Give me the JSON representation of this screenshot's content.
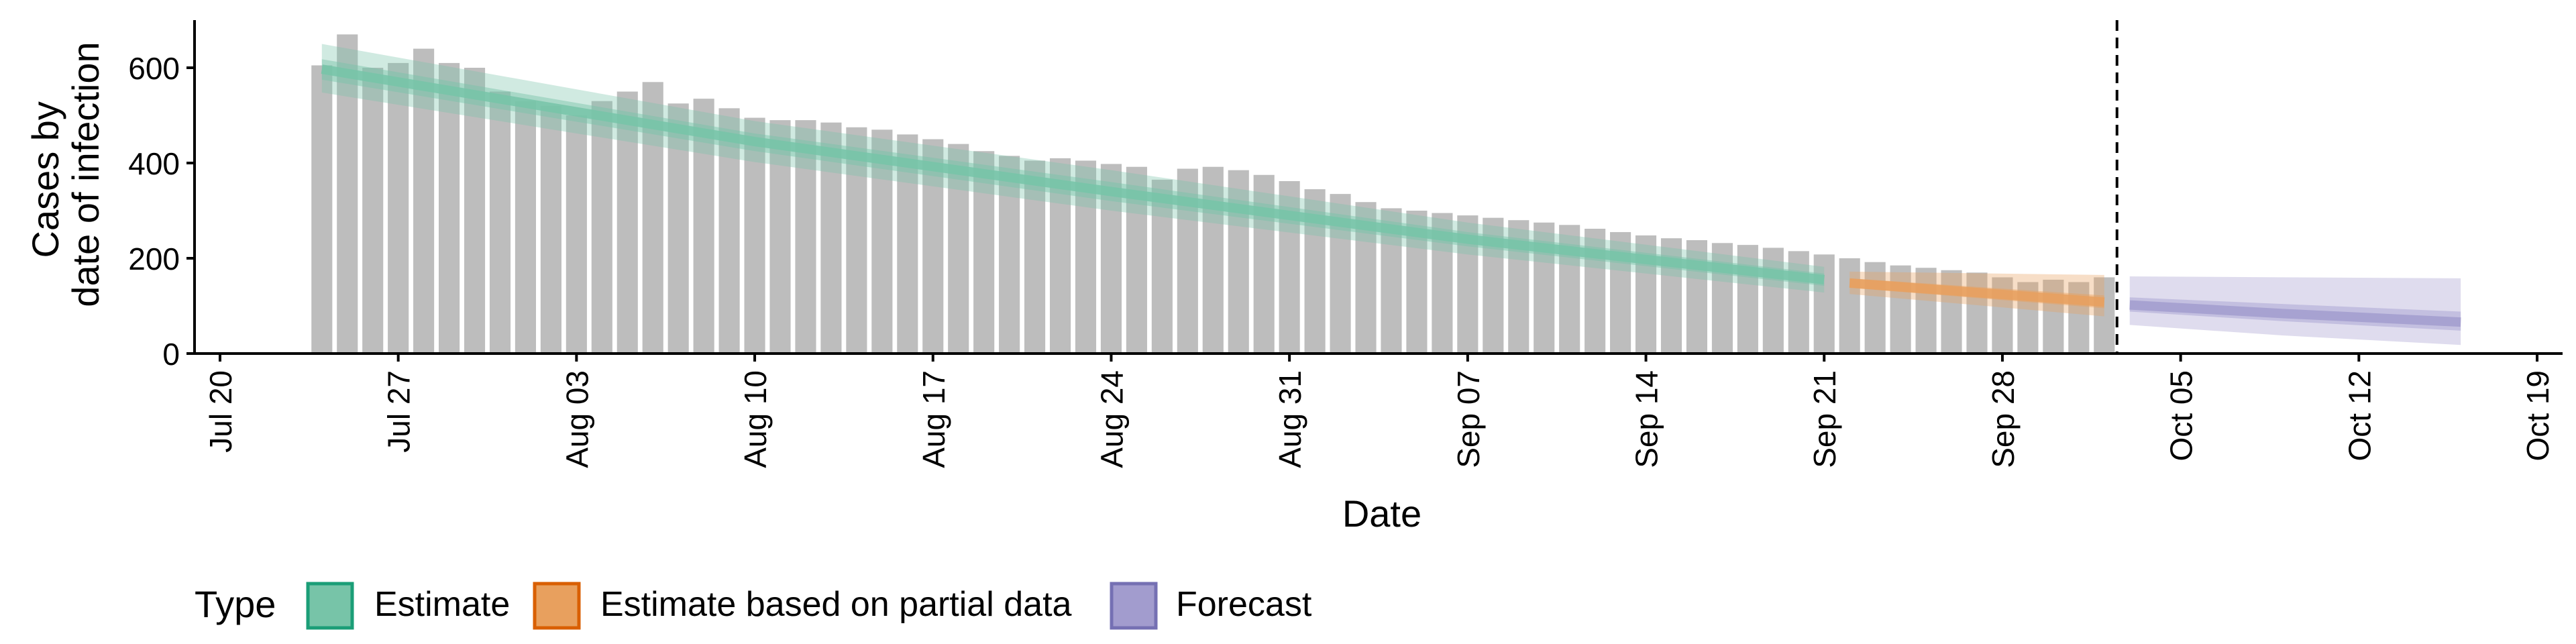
{
  "chart_data": {
    "type": "bar",
    "title": "",
    "xlabel": "Date",
    "ylabel_lines": [
      "Cases by",
      "date of infection"
    ],
    "ylim": [
      0,
      700
    ],
    "y_ticks": [
      0,
      200,
      400,
      600
    ],
    "x_range": [
      "2020-07-19",
      "2020-10-20"
    ],
    "x_ticks": [
      {
        "date": "2020-07-20",
        "label": "Jul 20"
      },
      {
        "date": "2020-07-27",
        "label": "Jul 27"
      },
      {
        "date": "2020-08-03",
        "label": "Aug 03"
      },
      {
        "date": "2020-08-10",
        "label": "Aug 10"
      },
      {
        "date": "2020-08-17",
        "label": "Aug 17"
      },
      {
        "date": "2020-08-24",
        "label": "Aug 24"
      },
      {
        "date": "2020-08-31",
        "label": "Aug 31"
      },
      {
        "date": "2020-09-07",
        "label": "Sep 07"
      },
      {
        "date": "2020-09-14",
        "label": "Sep 14"
      },
      {
        "date": "2020-09-21",
        "label": "Sep 21"
      },
      {
        "date": "2020-09-28",
        "label": "Sep 28"
      },
      {
        "date": "2020-10-05",
        "label": "Oct 05"
      },
      {
        "date": "2020-10-12",
        "label": "Oct 12"
      },
      {
        "date": "2020-10-19",
        "label": "Oct 19"
      }
    ],
    "bars": {
      "color": "#bdbdbd",
      "dates": [
        "2020-07-24",
        "2020-07-25",
        "2020-07-26",
        "2020-07-27",
        "2020-07-28",
        "2020-07-29",
        "2020-07-30",
        "2020-07-31",
        "2020-08-01",
        "2020-08-02",
        "2020-08-03",
        "2020-08-04",
        "2020-08-05",
        "2020-08-06",
        "2020-08-07",
        "2020-08-08",
        "2020-08-09",
        "2020-08-10",
        "2020-08-11",
        "2020-08-12",
        "2020-08-13",
        "2020-08-14",
        "2020-08-15",
        "2020-08-16",
        "2020-08-17",
        "2020-08-18",
        "2020-08-19",
        "2020-08-20",
        "2020-08-21",
        "2020-08-22",
        "2020-08-23",
        "2020-08-24",
        "2020-08-25",
        "2020-08-26",
        "2020-08-27",
        "2020-08-28",
        "2020-08-29",
        "2020-08-30",
        "2020-08-31",
        "2020-09-01",
        "2020-09-02",
        "2020-09-03",
        "2020-09-04",
        "2020-09-05",
        "2020-09-06",
        "2020-09-07",
        "2020-09-08",
        "2020-09-09",
        "2020-09-10",
        "2020-09-11",
        "2020-09-12",
        "2020-09-13",
        "2020-09-14",
        "2020-09-15",
        "2020-09-16",
        "2020-09-17",
        "2020-09-18",
        "2020-09-19",
        "2020-09-20",
        "2020-09-21",
        "2020-09-22",
        "2020-09-23",
        "2020-09-24",
        "2020-09-25",
        "2020-09-26",
        "2020-09-27",
        "2020-09-28",
        "2020-09-29",
        "2020-09-30",
        "2020-10-01",
        "2020-10-02"
      ],
      "values": [
        605,
        670,
        600,
        610,
        640,
        610,
        600,
        550,
        530,
        520,
        500,
        530,
        550,
        570,
        525,
        535,
        515,
        495,
        490,
        490,
        485,
        475,
        470,
        460,
        450,
        440,
        425,
        415,
        405,
        410,
        405,
        398,
        392,
        365,
        388,
        392,
        385,
        375,
        362,
        345,
        335,
        318,
        305,
        300,
        295,
        290,
        285,
        280,
        275,
        270,
        262,
        255,
        248,
        242,
        238,
        232,
        228,
        222,
        215,
        208,
        200,
        192,
        185,
        180,
        175,
        170,
        160,
        150,
        155,
        150,
        160
      ]
    },
    "estimate_start": "2020-10-03",
    "series": [
      {
        "name": "Estimate",
        "color": "#1b9e77",
        "fill": "#77c4a8",
        "dates": [
          "2020-07-24",
          "2020-08-10",
          "2020-08-24",
          "2020-09-07",
          "2020-09-21"
        ],
        "median": [
          597,
          445,
          340,
          240,
          155
        ],
        "lower_50": [
          575,
          425,
          320,
          225,
          142
        ],
        "upper_50": [
          618,
          462,
          360,
          255,
          168
        ],
        "lower_90": [
          548,
          402,
          300,
          208,
          128
        ],
        "upper_90": [
          650,
          488,
          385,
          275,
          182
        ]
      },
      {
        "name": "Estimate based on partial data",
        "color": "#d95f02",
        "fill": "#e8a05e",
        "dates": [
          "2020-09-22",
          "2020-10-02"
        ],
        "median": [
          148,
          108
        ],
        "lower_50": [
          138,
          95
        ],
        "upper_50": [
          158,
          122
        ],
        "lower_90": [
          125,
          78
        ],
        "upper_90": [
          172,
          165
        ]
      },
      {
        "name": "Forecast",
        "color": "#7570b3",
        "fill": "#a29cce",
        "dates": [
          "2020-10-03",
          "2020-10-09",
          "2020-10-16"
        ],
        "median": [
          102,
          84,
          66
        ],
        "lower_50": [
          88,
          68,
          48
        ],
        "upper_50": [
          118,
          104,
          88
        ],
        "lower_90": [
          60,
          38,
          18
        ],
        "upper_90": [
          162,
          160,
          158
        ]
      }
    ],
    "legend": {
      "title": "Type",
      "position": "bottom-left",
      "items": [
        {
          "label": "Estimate",
          "color": "#1b9e77",
          "fill": "#77c4a8"
        },
        {
          "label": "Estimate based on partial data",
          "color": "#d95f02",
          "fill": "#e8a05e"
        },
        {
          "label": "Forecast",
          "color": "#7570b3",
          "fill": "#a29cce"
        }
      ]
    }
  }
}
